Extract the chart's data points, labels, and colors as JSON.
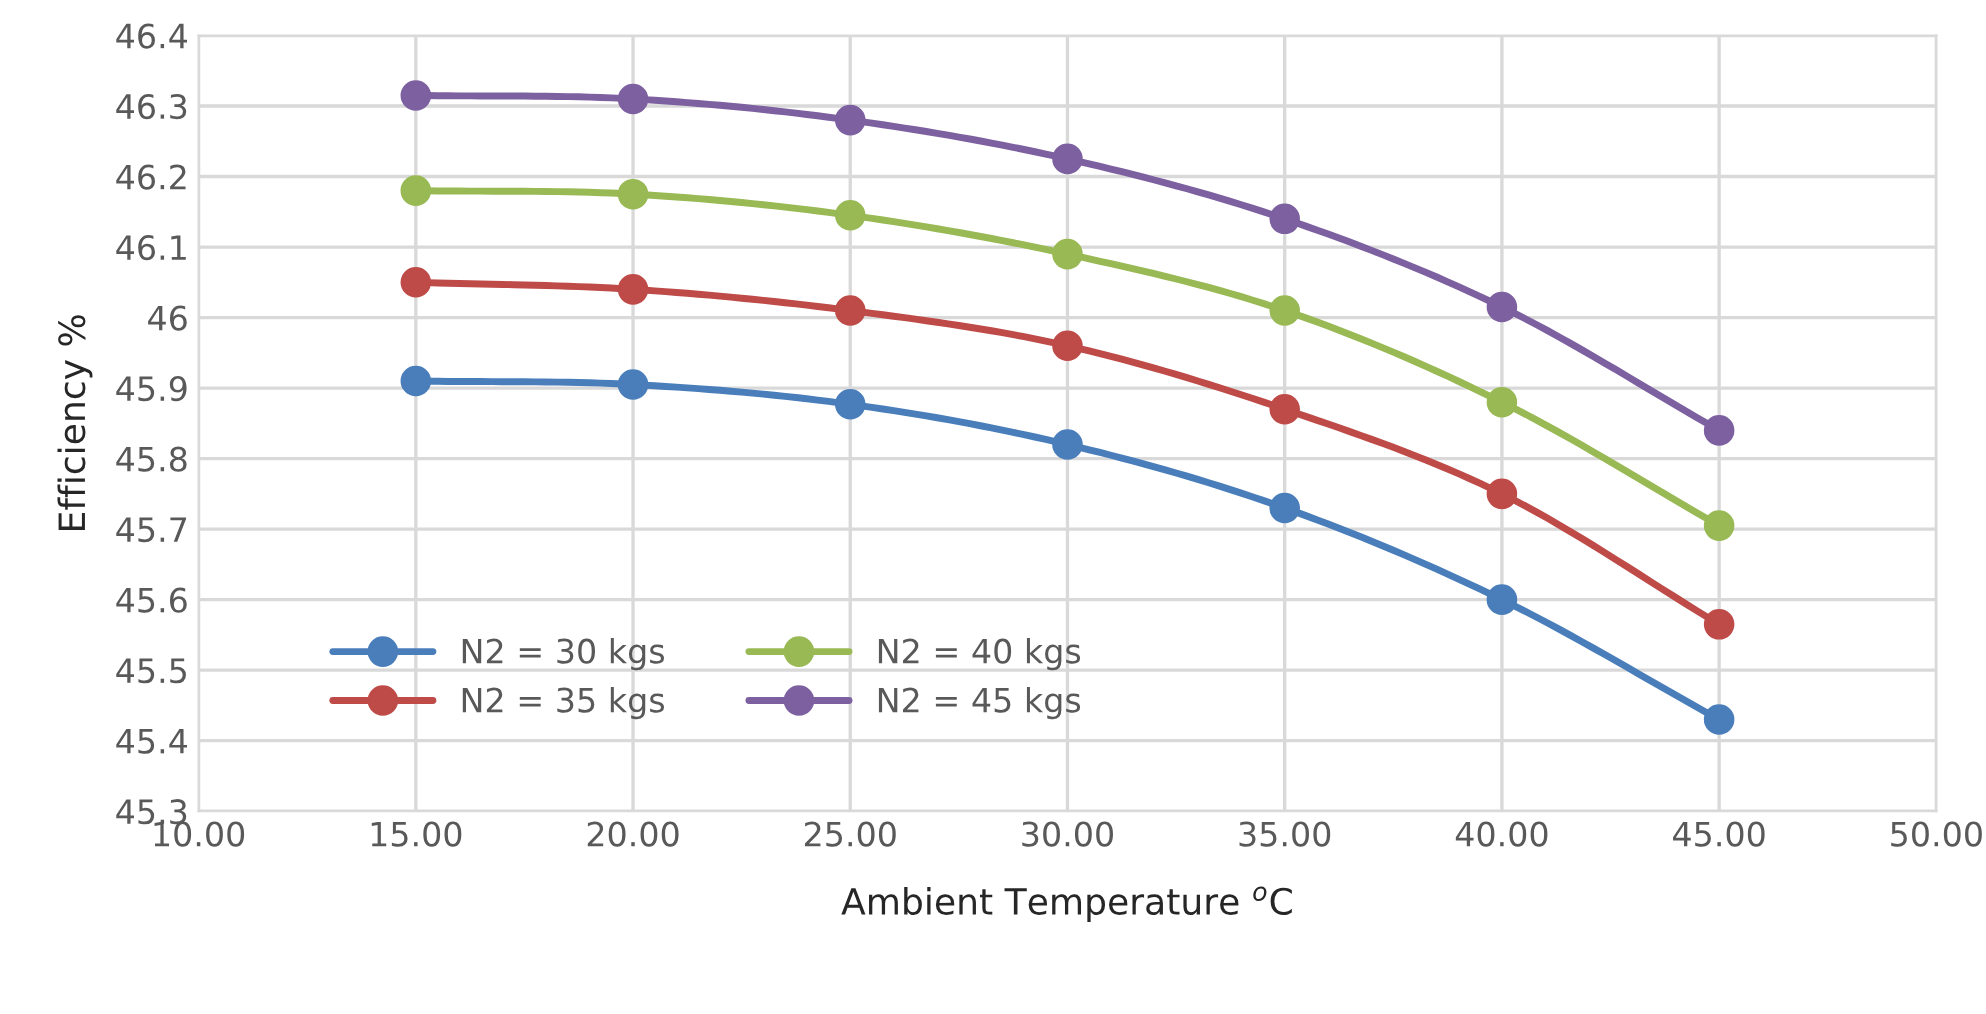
{
  "chart_data": {
    "type": "line",
    "xlabel": "Ambient Temperature $^{o}$C",
    "ylabel": "Efficiency %",
    "x": [
      15,
      20,
      25,
      30,
      35,
      40,
      45
    ],
    "series": [
      {
        "name": "N2 = 30 kgs",
        "color": "#4a7ebb",
        "values": [
          45.91,
          45.905,
          45.877,
          45.82,
          45.73,
          45.6,
          45.43
        ]
      },
      {
        "name": "N2 = 35 kgs",
        "color": "#be4b48",
        "values": [
          46.05,
          46.04,
          46.01,
          45.96,
          45.87,
          45.75,
          45.565
        ]
      },
      {
        "name": "N2 = 40 kgs",
        "color": "#98b954",
        "values": [
          46.18,
          46.175,
          46.145,
          46.09,
          46.01,
          45.88,
          45.705
        ]
      },
      {
        "name": "N2 = 45 kgs",
        "color": "#7d60a0",
        "values": [
          46.315,
          46.31,
          46.28,
          46.225,
          46.14,
          46.015,
          45.84
        ]
      }
    ],
    "xlim": [
      10,
      50
    ],
    "xticks": [
      {
        "value": 10,
        "label": "10.00"
      },
      {
        "value": 15,
        "label": "15.00"
      },
      {
        "value": 20,
        "label": "20.00"
      },
      {
        "value": 25,
        "label": "25.00"
      },
      {
        "value": 30,
        "label": "30.00"
      },
      {
        "value": 35,
        "label": "35.00"
      },
      {
        "value": 40,
        "label": "40.00"
      },
      {
        "value": 45,
        "label": "45.00"
      },
      {
        "value": 50,
        "label": "50.00"
      }
    ],
    "ylim": [
      45.3,
      46.4
    ],
    "yticks": [
      45.3,
      45.4,
      45.5,
      45.6,
      45.7,
      45.8,
      45.9,
      46,
      46.1,
      46.2,
      46.3,
      46.4
    ],
    "grid": true,
    "legend": "bottom left",
    "marker": "circle",
    "line_style": "solid"
  }
}
